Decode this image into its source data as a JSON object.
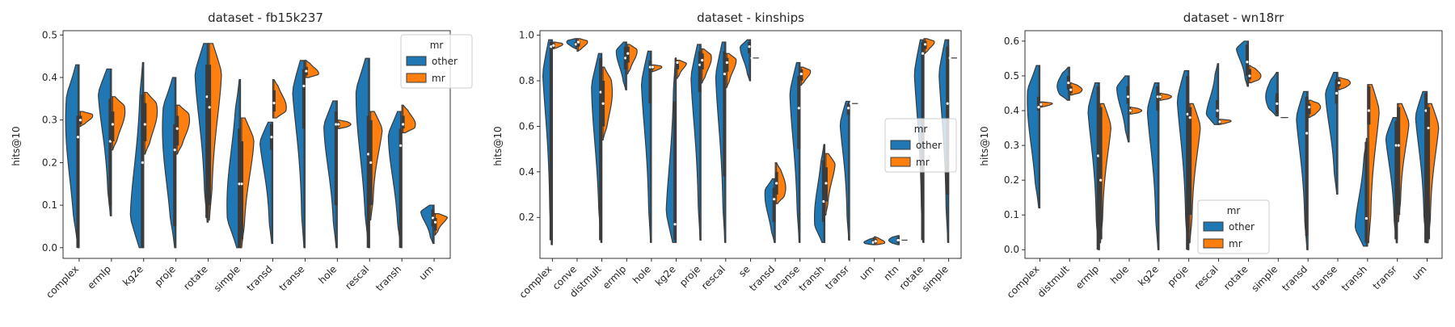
{
  "colors": {
    "other": "#1f77b4",
    "mr": "#ff7f0e",
    "outline": "#3b3b3b"
  },
  "chart_data": [
    {
      "type": "violin",
      "title": "dataset - fb15k237",
      "ylabel": "hits@10",
      "ylim": [
        -0.025,
        0.51
      ],
      "yticks": [
        "0.0",
        "0.1",
        "0.2",
        "0.3",
        "0.4",
        "0.5"
      ],
      "legend": {
        "title": "mr",
        "position": "top-right",
        "entries": [
          "other",
          "mr"
        ]
      },
      "categories": [
        "complex",
        "ermlp",
        "kg2e",
        "proje",
        "rotate",
        "simple",
        "transd",
        "transe",
        "hole",
        "rescal",
        "transh",
        "um"
      ],
      "series": [
        {
          "name": "other",
          "violins": [
            {
              "min": 0.0,
              "max": 0.43,
              "median": 0.26,
              "q1": 0.0,
              "q3": 0.31,
              "peak": 0.3
            },
            {
              "min": 0.075,
              "max": 0.42,
              "median": 0.25,
              "q1": 0.1,
              "q3": 0.35,
              "peak": 0.39
            },
            {
              "min": 0.0,
              "max": 0.435,
              "median": 0.2,
              "q1": 0.0,
              "q3": 0.36,
              "peak": 0.05
            },
            {
              "min": 0.0,
              "max": 0.4,
              "median": 0.23,
              "q1": 0.05,
              "q3": 0.29,
              "peak": 0.28
            },
            {
              "min": 0.06,
              "max": 0.48,
              "median": 0.355,
              "q1": 0.07,
              "q3": 0.43,
              "peak": 0.44
            },
            {
              "min": 0.0,
              "max": 0.395,
              "median": 0.15,
              "q1": 0.0,
              "q3": 0.28,
              "peak": 0.1
            },
            {
              "min": 0.01,
              "max": 0.295,
              "median": 0.26,
              "q1": 0.23,
              "q3": 0.29,
              "peak": 0.28
            },
            {
              "min": 0.0,
              "max": 0.44,
              "median": 0.38,
              "q1": 0.28,
              "q3": 0.42,
              "peak": 0.43
            },
            {
              "min": 0.0,
              "max": 0.345,
              "median": 0.29,
              "q1": 0.1,
              "q3": 0.32,
              "peak": 0.3
            },
            {
              "min": 0.0,
              "max": 0.445,
              "median": 0.22,
              "q1": 0.0,
              "q3": 0.31,
              "peak": 0.36
            },
            {
              "min": 0.0,
              "max": 0.32,
              "median": 0.24,
              "q1": 0.0,
              "q3": 0.28,
              "peak": 0.27
            },
            {
              "min": 0.01,
              "max": 0.1,
              "median": 0.07,
              "q1": 0.05,
              "q3": 0.09,
              "peak": 0.09
            }
          ]
        },
        {
          "name": "mr",
          "violins": [
            {
              "min": 0.285,
              "max": 0.32,
              "median": 0.3,
              "q1": 0.29,
              "q3": 0.31,
              "peak": 0.31
            },
            {
              "min": 0.23,
              "max": 0.355,
              "median": 0.29,
              "q1": 0.25,
              "q3": 0.32,
              "peak": 0.32
            },
            {
              "min": 0.22,
              "max": 0.365,
              "median": 0.29,
              "q1": 0.25,
              "q3": 0.34,
              "peak": 0.32
            },
            {
              "min": 0.22,
              "max": 0.335,
              "median": 0.28,
              "q1": 0.24,
              "q3": 0.31,
              "peak": 0.3
            },
            {
              "min": 0.065,
              "max": 0.48,
              "median": 0.33,
              "q1": 0.1,
              "q3": 0.43,
              "peak": 0.44
            },
            {
              "min": 0.0,
              "max": 0.305,
              "median": 0.15,
              "q1": 0.02,
              "q3": 0.25,
              "peak": 0.27
            },
            {
              "min": 0.305,
              "max": 0.395,
              "median": 0.34,
              "q1": 0.32,
              "q3": 0.37,
              "peak": 0.33
            },
            {
              "min": 0.4,
              "max": 0.44,
              "median": 0.415,
              "q1": 0.405,
              "q3": 0.425,
              "peak": 0.41
            },
            {
              "min": 0.28,
              "max": 0.3,
              "median": 0.29,
              "q1": 0.285,
              "q3": 0.295,
              "peak": 0.29
            },
            {
              "min": 0.065,
              "max": 0.32,
              "median": 0.2,
              "q1": 0.1,
              "q3": 0.3,
              "peak": 0.31
            },
            {
              "min": 0.27,
              "max": 0.335,
              "median": 0.29,
              "q1": 0.28,
              "q3": 0.31,
              "peak": 0.29
            },
            {
              "min": 0.03,
              "max": 0.08,
              "median": 0.06,
              "q1": 0.04,
              "q3": 0.07,
              "peak": 0.075
            }
          ]
        }
      ]
    },
    {
      "type": "violin",
      "title": "dataset - kinships",
      "ylabel": "hits@10",
      "ylim": [
        0.02,
        1.02
      ],
      "yticks": [
        "0.2",
        "0.4",
        "0.6",
        "0.8",
        "1.0"
      ],
      "legend": {
        "title": "mr",
        "position": "center-right",
        "entries": [
          "other",
          "mr"
        ]
      },
      "categories": [
        "complex",
        "conve",
        "distmult",
        "ermlp",
        "hole",
        "kg2e",
        "proje",
        "rescal",
        "se",
        "transd",
        "transe",
        "transh",
        "transr",
        "um",
        "ntn",
        "rotate",
        "simple"
      ],
      "series": [
        {
          "name": "other",
          "violins": [
            {
              "min": 0.08,
              "max": 0.98,
              "median": 0.95,
              "q1": 0.1,
              "q3": 0.97,
              "peak": 0.96
            },
            {
              "min": 0.94,
              "max": 0.985,
              "median": 0.96,
              "q1": 0.95,
              "q3": 0.97,
              "peak": 0.97
            },
            {
              "min": 0.09,
              "max": 0.92,
              "median": 0.75,
              "q1": 0.1,
              "q3": 0.9,
              "peak": 0.8
            },
            {
              "min": 0.76,
              "max": 0.97,
              "median": 0.9,
              "q1": 0.85,
              "q3": 0.95,
              "peak": 0.93
            },
            {
              "min": 0.09,
              "max": 0.93,
              "median": 0.86,
              "q1": 0.7,
              "q3": 0.89,
              "peak": 0.87
            },
            {
              "min": 0.09,
              "max": 0.9,
              "median": 0.17,
              "q1": 0.1,
              "q3": 0.71,
              "peak": 0.15
            },
            {
              "min": 0.1,
              "max": 0.96,
              "median": 0.87,
              "q1": 0.75,
              "q3": 0.93,
              "peak": 0.9
            },
            {
              "min": 0.09,
              "max": 0.97,
              "median": 0.83,
              "q1": 0.38,
              "q3": 0.93,
              "peak": 0.9
            },
            {
              "min": 0.8,
              "max": 0.98,
              "median": 0.95,
              "q1": 0.92,
              "q3": 0.97,
              "peak": 0.95
            },
            {
              "min": 0.09,
              "max": 0.37,
              "median": 0.28,
              "q1": 0.18,
              "q3": 0.33,
              "peak": 0.3
            },
            {
              "min": 0.09,
              "max": 0.88,
              "median": 0.68,
              "q1": 0.5,
              "q3": 0.82,
              "peak": 0.8
            },
            {
              "min": 0.09,
              "max": 0.52,
              "median": 0.27,
              "q1": 0.18,
              "q3": 0.45,
              "peak": 0.2
            },
            {
              "min": 0.1,
              "max": 0.71,
              "median": 0.68,
              "q1": 0.65,
              "q3": 0.7,
              "peak": 0.7
            },
            {
              "min": 0.08,
              "max": 0.11,
              "median": 0.09,
              "q1": 0.085,
              "q3": 0.1,
              "peak": 0.09
            },
            {
              "min": 0.08,
              "max": 0.12,
              "median": 0.1,
              "q1": 0.09,
              "q3": 0.11,
              "peak": 0.1
            },
            {
              "min": 0.09,
              "max": 0.98,
              "median": 0.92,
              "q1": 0.1,
              "q3": 0.97,
              "peak": 0.96
            },
            {
              "min": 0.09,
              "max": 0.98,
              "median": 0.7,
              "q1": 0.3,
              "q3": 0.95,
              "peak": 0.95
            }
          ]
        },
        {
          "name": "mr",
          "violins": [
            {
              "min": 0.94,
              "max": 0.97,
              "median": 0.955,
              "q1": 0.945,
              "q3": 0.965,
              "peak": 0.96
            },
            {
              "min": 0.93,
              "max": 0.985,
              "median": 0.97,
              "q1": 0.95,
              "q3": 0.975,
              "peak": 0.97
            },
            {
              "min": 0.54,
              "max": 0.86,
              "median": 0.7,
              "q1": 0.6,
              "q3": 0.8,
              "peak": 0.75
            },
            {
              "min": 0.83,
              "max": 0.96,
              "median": 0.92,
              "q1": 0.88,
              "q3": 0.95,
              "peak": 0.93
            },
            {
              "min": 0.84,
              "max": 0.87,
              "median": 0.86,
              "q1": 0.85,
              "q3": 0.865,
              "peak": 0.86
            },
            {
              "min": 0.81,
              "max": 0.89,
              "median": 0.88,
              "q1": 0.85,
              "q3": 0.885,
              "peak": 0.88
            },
            {
              "min": 0.79,
              "max": 0.94,
              "median": 0.89,
              "q1": 0.85,
              "q3": 0.92,
              "peak": 0.9
            },
            {
              "min": 0.77,
              "max": 0.92,
              "median": 0.88,
              "q1": 0.84,
              "q3": 0.9,
              "peak": 0.89
            },
            {
              "min": 0.9,
              "max": 0.9,
              "median": 0.9,
              "q1": 0.9,
              "q3": 0.9,
              "peak": 0.9
            },
            {
              "min": 0.26,
              "max": 0.44,
              "median": 0.35,
              "q1": 0.3,
              "q3": 0.4,
              "peak": 0.33
            },
            {
              "min": 0.78,
              "max": 0.86,
              "median": 0.83,
              "q1": 0.8,
              "q3": 0.85,
              "peak": 0.84
            },
            {
              "min": 0.21,
              "max": 0.48,
              "median": 0.35,
              "q1": 0.27,
              "q3": 0.42,
              "peak": 0.45
            },
            {
              "min": 0.7,
              "max": 0.7,
              "median": 0.7,
              "q1": 0.7,
              "q3": 0.7,
              "peak": 0.7
            },
            {
              "min": 0.08,
              "max": 0.115,
              "median": 0.095,
              "q1": 0.085,
              "q3": 0.105,
              "peak": 0.09
            },
            {
              "min": 0.1,
              "max": 0.1,
              "median": 0.1,
              "q1": 0.1,
              "q3": 0.1,
              "peak": 0.1
            },
            {
              "min": 0.92,
              "max": 0.985,
              "median": 0.96,
              "q1": 0.94,
              "q3": 0.975,
              "peak": 0.97
            },
            {
              "min": 0.9,
              "max": 0.9,
              "median": 0.9,
              "q1": 0.9,
              "q3": 0.9,
              "peak": 0.9
            }
          ]
        }
      ]
    },
    {
      "type": "violin",
      "title": "dataset - wn18rr",
      "ylabel": "hits@10",
      "ylim": [
        -0.025,
        0.63
      ],
      "yticks": [
        "0.0",
        "0.1",
        "0.2",
        "0.3",
        "0.4",
        "0.5",
        "0.6"
      ],
      "legend": {
        "title": "mr",
        "position": "bottom-center",
        "entries": [
          "other",
          "mr"
        ]
      },
      "categories": [
        "complex",
        "distmult",
        "ermlp",
        "hole",
        "kg2e",
        "proje",
        "rescal",
        "rotate",
        "simple",
        "transd",
        "transe",
        "transh",
        "transr",
        "um"
      ],
      "series": [
        {
          "name": "other",
          "violins": [
            {
              "min": 0.12,
              "max": 0.53,
              "median": 0.41,
              "q1": 0.4,
              "q3": 0.44,
              "peak": 0.43
            },
            {
              "min": 0.43,
              "max": 0.525,
              "median": 0.48,
              "q1": 0.46,
              "q3": 0.5,
              "peak": 0.47
            },
            {
              "min": 0.0,
              "max": 0.48,
              "median": 0.27,
              "q1": 0.0,
              "q3": 0.47,
              "peak": 0.47
            },
            {
              "min": 0.31,
              "max": 0.5,
              "median": 0.44,
              "q1": 0.42,
              "q3": 0.47,
              "peak": 0.47
            },
            {
              "min": 0.0,
              "max": 0.48,
              "median": 0.44,
              "q1": 0.4,
              "q3": 0.47,
              "peak": 0.46
            },
            {
              "min": 0.0,
              "max": 0.515,
              "median": 0.39,
              "q1": 0.0,
              "q3": 0.5,
              "peak": 0.5
            },
            {
              "min": 0.36,
              "max": 0.535,
              "median": 0.4,
              "q1": 0.38,
              "q3": 0.43,
              "peak": 0.38
            },
            {
              "min": 0.47,
              "max": 0.6,
              "median": 0.54,
              "q1": 0.5,
              "q3": 0.59,
              "peak": 0.59
            },
            {
              "min": 0.385,
              "max": 0.51,
              "median": 0.42,
              "q1": 0.39,
              "q3": 0.45,
              "peak": 0.44
            },
            {
              "min": 0.0,
              "max": 0.455,
              "median": 0.335,
              "q1": 0.04,
              "q3": 0.44,
              "peak": 0.44
            },
            {
              "min": 0.16,
              "max": 0.51,
              "median": 0.45,
              "q1": 0.42,
              "q3": 0.49,
              "peak": 0.47
            },
            {
              "min": 0.01,
              "max": 0.32,
              "median": 0.09,
              "q1": 0.02,
              "q3": 0.31,
              "peak": 0.05
            },
            {
              "min": 0.02,
              "max": 0.38,
              "median": 0.3,
              "q1": 0.03,
              "q3": 0.37,
              "peak": 0.37
            },
            {
              "min": 0.02,
              "max": 0.455,
              "median": 0.4,
              "q1": 0.02,
              "q3": 0.45,
              "peak": 0.44
            }
          ]
        },
        {
          "name": "mr",
          "violins": [
            {
              "min": 0.41,
              "max": 0.425,
              "median": 0.418,
              "q1": 0.413,
              "q3": 0.422,
              "peak": 0.42
            },
            {
              "min": 0.445,
              "max": 0.48,
              "median": 0.46,
              "q1": 0.45,
              "q3": 0.47,
              "peak": 0.46
            },
            {
              "min": 0.02,
              "max": 0.42,
              "median": 0.2,
              "q1": 0.03,
              "q3": 0.41,
              "peak": 0.41
            },
            {
              "min": 0.39,
              "max": 0.41,
              "median": 0.4,
              "q1": 0.395,
              "q3": 0.405,
              "peak": 0.4
            },
            {
              "min": 0.43,
              "max": 0.45,
              "median": 0.44,
              "q1": 0.435,
              "q3": 0.445,
              "peak": 0.44
            },
            {
              "min": 0.02,
              "max": 0.42,
              "median": 0.38,
              "q1": 0.1,
              "q3": 0.41,
              "peak": 0.41
            },
            {
              "min": 0.36,
              "max": 0.375,
              "median": 0.368,
              "q1": 0.363,
              "q3": 0.372,
              "peak": 0.37
            },
            {
              "min": 0.48,
              "max": 0.53,
              "median": 0.5,
              "q1": 0.49,
              "q3": 0.52,
              "peak": 0.5
            },
            {
              "min": 0.38,
              "max": 0.38,
              "median": 0.38,
              "q1": 0.38,
              "q3": 0.38,
              "peak": 0.38
            },
            {
              "min": 0.38,
              "max": 0.43,
              "median": 0.41,
              "q1": 0.39,
              "q3": 0.42,
              "peak": 0.41
            },
            {
              "min": 0.46,
              "max": 0.495,
              "median": 0.48,
              "q1": 0.47,
              "q3": 0.49,
              "peak": 0.48
            },
            {
              "min": 0.02,
              "max": 0.475,
              "median": 0.4,
              "q1": 0.36,
              "q3": 0.47,
              "peak": 0.46
            },
            {
              "min": 0.08,
              "max": 0.42,
              "median": 0.3,
              "q1": 0.1,
              "q3": 0.41,
              "peak": 0.41
            },
            {
              "min": 0.02,
              "max": 0.42,
              "median": 0.35,
              "q1": 0.03,
              "q3": 0.41,
              "peak": 0.41
            }
          ]
        }
      ]
    }
  ]
}
